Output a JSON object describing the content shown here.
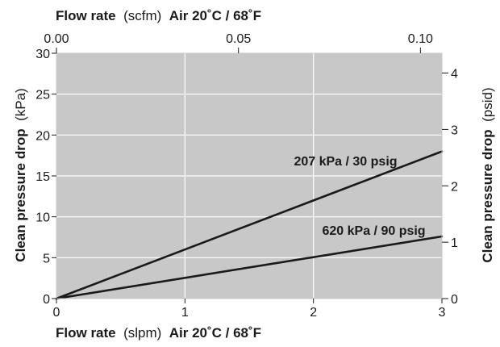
{
  "chart_data": {
    "type": "line",
    "plot_background": "#c8c8c8",
    "grid_color": "#ffffff",
    "line_color": "#1a1a1a",
    "grid": true,
    "x_bottom": {
      "label_bold_1": "Flow rate",
      "label_normal": "(slpm)",
      "label_bold_2": "Air 20˚C / 68˚F",
      "unit": "slpm",
      "range": [
        0,
        3
      ],
      "ticks": [
        0,
        1,
        2,
        3
      ],
      "tick_labels": [
        "0",
        "1",
        "2",
        "3"
      ]
    },
    "x_top": {
      "label_bold_1": "Flow rate",
      "label_normal": "(scfm)",
      "label_bold_2": "Air 20˚C / 68˚F",
      "unit": "scfm",
      "range": [
        0,
        0.1059
      ],
      "ticks": [
        0,
        0.05,
        0.1
      ],
      "tick_labels": [
        "0.00",
        "0.05",
        "0.10"
      ]
    },
    "y_left": {
      "label_bold": "Clean pressure drop",
      "label_normal": "(kPa)",
      "unit": "kPa",
      "range": [
        0,
        30
      ],
      "ticks": [
        0,
        5,
        10,
        15,
        20,
        25,
        30
      ],
      "tick_labels": [
        "0",
        "5",
        "10",
        "15",
        "20",
        "25",
        "30"
      ]
    },
    "y_right": {
      "label_bold": "Clean pressure drop",
      "label_normal": "(psid)",
      "unit": "psid",
      "range": [
        0,
        4.351
      ],
      "ticks": [
        0,
        1,
        2,
        3,
        4
      ],
      "tick_labels": [
        "0",
        "1",
        "2",
        "3",
        "4"
      ]
    },
    "series": [
      {
        "name": "207 kPa / 30 psig",
        "x": [
          0,
          3
        ],
        "y": [
          0,
          18
        ]
      },
      {
        "name": "620 kPa / 90 psig",
        "x": [
          0,
          3
        ],
        "y": [
          0,
          7.6
        ]
      }
    ]
  }
}
